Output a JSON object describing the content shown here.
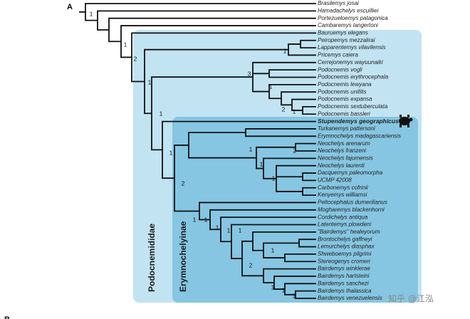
{
  "panel_label": "A",
  "next_panel_label": "B",
  "taxa": [
    "Brasilemys josai",
    "Hamadachelys escuilliei",
    "Portezueloemys patagonica",
    "Cambaremys langertoni",
    "Bauruemys elegans",
    "Peiropemys mezzalirai",
    "Lapparentemys vilavilensis",
    "Pricemys caiera",
    "Cerrejonemys wayuunaiki",
    "Podocnemis vogli",
    "Podocnemis erythrocephala",
    "Podocnemis lewyana",
    "Podocnemis unifilis",
    "Podocnemis expansa",
    "Podocnemis sextuberculata",
    "Podocnemis bassleri",
    "Stupendemys geographicus",
    "Turkanemys pattersoni",
    "Erymnochelys madagascariensis",
    "Neochelys arenarum",
    "Neochelys franzeni",
    "Neochelys fajumensis",
    "Neochelys laurenti",
    "Dacquemys paleomorpha",
    "UCMP 42008",
    "Carbonemys cofrinii",
    "Kenyemys williamsi",
    "Peltocephalus dumerilianus",
    "Mogharemys blackenhorni",
    "Cordichelys antiqua",
    "Latentemys plowdeni",
    "\"Bairdemys\" healeyorum",
    "Brontochelys gaffneyi",
    "Lemurchelys diasphax",
    "Shweboemys pilgrimi",
    "Stereogenys cromeri",
    "Bairdemys winklerae",
    "Bairdemys hartsteini",
    "Bairdemys sanchezi",
    "Bairdemys thalassica",
    "Bairdemys venezuelensis"
  ],
  "supports": [
    1,
    1,
    2,
    1,
    1,
    3,
    1,
    2,
    1,
    1,
    1,
    2,
    1,
    2,
    1,
    1,
    1,
    1,
    1,
    1,
    1,
    1,
    2,
    1,
    1,
    1
  ],
  "clades": [
    "Podocnemididae",
    "Erymnochelyinae"
  ],
  "watermark": "知乎 @江泓"
}
